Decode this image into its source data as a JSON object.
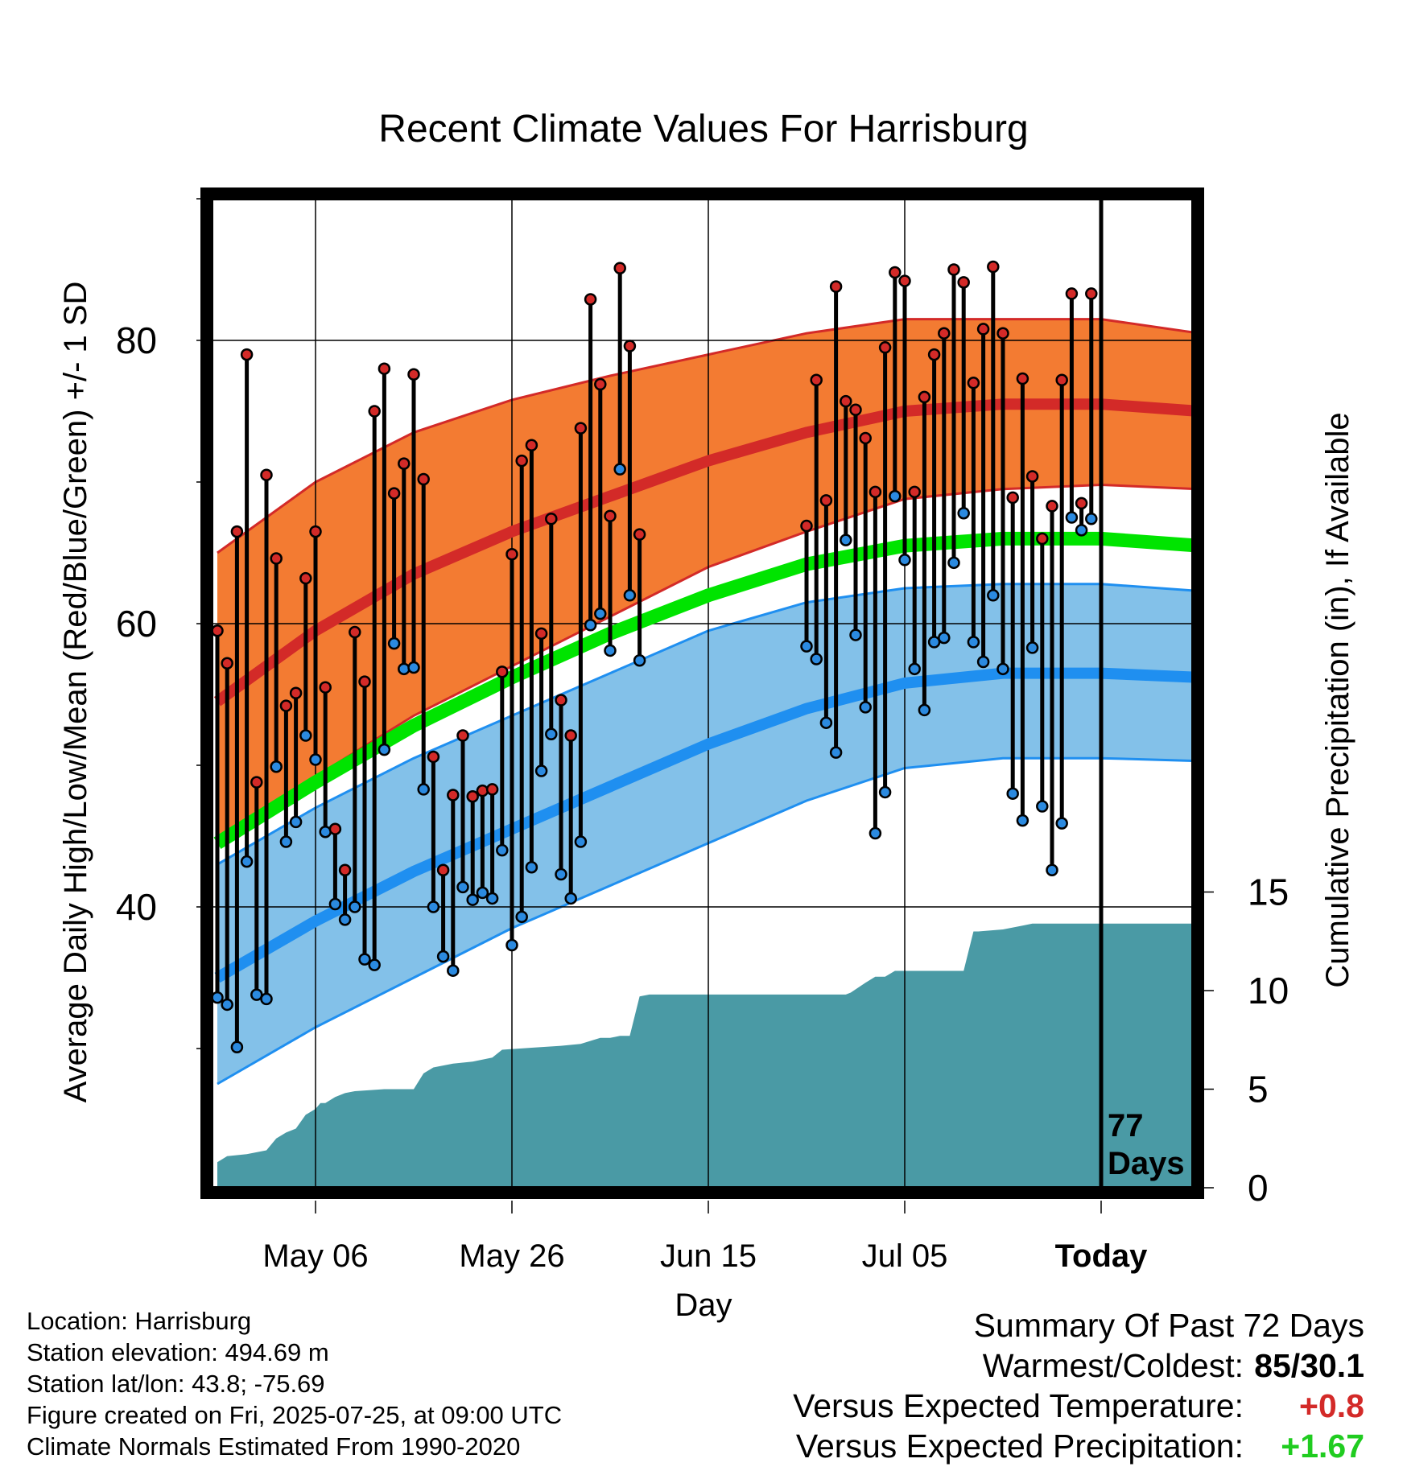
{
  "chart_data": {
    "type": "line",
    "title": "Recent Climate Values For Harrisburg",
    "xlabel": "Day",
    "ylabel": "Average Daily High/Low/Mean (Red/Blue/Green) +/- 1 SD",
    "ylabel_right": "Cumulative Precipitation (in), If Available",
    "x_ticks": [
      "May 06",
      "May 26",
      "Jun 15",
      "Jul 05",
      "Today"
    ],
    "x_tick_days": [
      10,
      30,
      50,
      70,
      90
    ],
    "xlim": [
      0,
      100
    ],
    "ylim": [
      20,
      90
    ],
    "y_ticks": [
      40,
      60,
      80
    ],
    "y2lim": [
      0,
      30
    ],
    "y2_ticks": [
      0,
      5,
      10,
      15
    ],
    "today_day": 90,
    "today_label": "77\nDays",
    "grid": true,
    "normals": {
      "x": [
        0,
        10,
        20,
        30,
        40,
        50,
        60,
        70,
        80,
        90,
        100
      ],
      "high_mean": [
        54.5,
        59.5,
        63.5,
        66.5,
        69,
        71.5,
        73.5,
        75,
        75.5,
        75.5,
        75
      ],
      "high_plus_sd": [
        65,
        70,
        73.5,
        75.8,
        77.5,
        79,
        80.5,
        81.5,
        81.5,
        81.5,
        80.5
      ],
      "high_minus_sd": [
        44.5,
        49.2,
        53.5,
        57,
        60.5,
        64,
        66.5,
        68.8,
        69.5,
        69.8,
        69.5
      ],
      "mean": [
        44.5,
        48.8,
        52.8,
        56.2,
        59.3,
        62,
        64.2,
        65.5,
        66,
        66,
        65.5
      ],
      "low_mean": [
        35,
        39,
        42.5,
        45.5,
        48.5,
        51.5,
        54,
        55.8,
        56.5,
        56.5,
        56.2
      ],
      "low_plus_sd": [
        43,
        47,
        50.5,
        53.5,
        56.5,
        59.5,
        61.5,
        62.5,
        62.8,
        62.8,
        62.3
      ],
      "low_minus_sd": [
        27.5,
        31.5,
        35,
        38.5,
        41.5,
        44.5,
        47.5,
        49.8,
        50.5,
        50.5,
        50.3
      ]
    },
    "daily": {
      "day": [
        0,
        1,
        2,
        3,
        4,
        5,
        6,
        7,
        8,
        9,
        10,
        11,
        12,
        13,
        14,
        15,
        16,
        17,
        18,
        19,
        20,
        21,
        22,
        23,
        24,
        25,
        26,
        27,
        28,
        29,
        30,
        31,
        32,
        33,
        34,
        35,
        36,
        37,
        38,
        39,
        40,
        41,
        42,
        43,
        60,
        61,
        62,
        63,
        64,
        65,
        66,
        67,
        68,
        69,
        70,
        71,
        72,
        73,
        74,
        75,
        76,
        77,
        78,
        79,
        80,
        81,
        82,
        83,
        84,
        85,
        86,
        87,
        88,
        89
      ],
      "high": [
        59.5,
        57.2,
        66.5,
        79,
        48.8,
        70.5,
        64.6,
        54.2,
        55.1,
        63.2,
        66.5,
        55.5,
        45.5,
        42.6,
        59.4,
        55.9,
        75,
        78,
        69.2,
        71.3,
        77.6,
        70.2,
        50.6,
        42.6,
        47.9,
        52.1,
        47.8,
        48.2,
        48.3,
        56.6,
        64.9,
        71.5,
        72.6,
        59.3,
        67.4,
        54.6,
        52.1,
        73.8,
        82.9,
        76.9,
        67.6,
        85.1,
        79.6,
        66.3,
        66.9,
        77.2,
        68.7,
        83.8,
        75.7,
        75.1,
        73.1,
        69.3,
        79.5,
        84.8,
        84.2,
        69.3,
        76,
        79,
        80.5,
        85,
        84.1,
        77,
        80.8,
        85.2,
        80.5,
        68.9,
        77.3,
        70.4,
        66,
        68.3,
        77.2,
        83.3,
        68.5,
        83.3
      ],
      "low": [
        33.6,
        33.1,
        30.1,
        43.2,
        33.8,
        33.5,
        49.9,
        44.6,
        46,
        52.1,
        50.4,
        45.3,
        40.2,
        39.1,
        40,
        36.3,
        35.9,
        51.1,
        58.6,
        56.8,
        56.9,
        48.3,
        40,
        36.5,
        35.5,
        41.4,
        40.5,
        41,
        40.6,
        44,
        37.3,
        39.3,
        42.8,
        49.6,
        52.2,
        42.3,
        40.6,
        44.6,
        59.9,
        60.7,
        58.1,
        70.9,
        62,
        57.4,
        58.4,
        57.5,
        53,
        50.9,
        65.9,
        59.2,
        54.1,
        45.2,
        48.1,
        69,
        64.5,
        56.8,
        53.9,
        58.7,
        59,
        64.3,
        67.8,
        58.7,
        57.3,
        62,
        56.8,
        48,
        46.1,
        58.3,
        47.1,
        42.6,
        45.9,
        67.5,
        66.6,
        67.4
      ]
    },
    "precip": {
      "x": [
        0,
        1,
        3,
        5,
        6,
        7,
        8,
        9,
        10,
        10.5,
        11,
        12,
        13,
        14,
        17,
        20,
        21,
        22,
        23,
        24,
        26,
        28,
        29,
        32,
        35,
        37,
        39,
        40,
        41,
        42,
        43,
        44,
        47,
        50,
        52,
        56,
        60,
        64,
        64.5,
        66,
        67,
        68,
        69,
        70,
        72,
        76,
        77,
        77.5,
        80,
        81,
        82,
        83,
        85,
        86,
        87,
        88,
        89,
        89.5,
        95,
        100
      ],
      "y": [
        1.3,
        1.6,
        1.7,
        1.9,
        2.5,
        2.8,
        3.0,
        3.7,
        4.0,
        4.3,
        4.3,
        4.6,
        4.8,
        4.9,
        5.0,
        5.0,
        5.8,
        6.1,
        6.2,
        6.3,
        6.4,
        6.6,
        7.0,
        7.1,
        7.2,
        7.3,
        7.6,
        7.6,
        7.7,
        7.7,
        9.7,
        9.8,
        9.8,
        9.8,
        9.8,
        9.8,
        9.8,
        9.8,
        9.9,
        10.4,
        10.7,
        10.7,
        11.0,
        11.0,
        11.0,
        11.0,
        13.0,
        13.0,
        13.1,
        13.2,
        13.3,
        13.4,
        13.4,
        13.4,
        13.4,
        13.4,
        13.4,
        13.4,
        13.4,
        13.4
      ]
    },
    "colors": {
      "high_band": "#f37b32",
      "high_line": "#d32a28",
      "low_band": "#83c1e9",
      "low_line": "#1f8ff0",
      "mean_line": "#00e400",
      "precip": "#4a9aa5",
      "high_marker": "#d32a28",
      "low_marker": "#2b8ae0"
    }
  },
  "info": {
    "location": "Location: Harrisburg",
    "elevation": "Station elevation: 494.69 m",
    "latlon": "Station lat/lon: 43.8; -75.69",
    "created": "Figure created on Fri, 2025-07-25, at 09:00 UTC",
    "normals": "Climate Normals Estimated From 1990-2020"
  },
  "summary": {
    "title": "Summary Of Past 72 Days",
    "warmest_label": "Warmest/Coldest:",
    "warmest_value": "85/30.1",
    "temp_label": "Versus Expected Temperature:",
    "temp_value": "+0.8",
    "temp_color": "#d32a28",
    "precip_label": "Versus Expected Precipitation:",
    "precip_value": "+1.67",
    "precip_color": "#20cc20"
  }
}
